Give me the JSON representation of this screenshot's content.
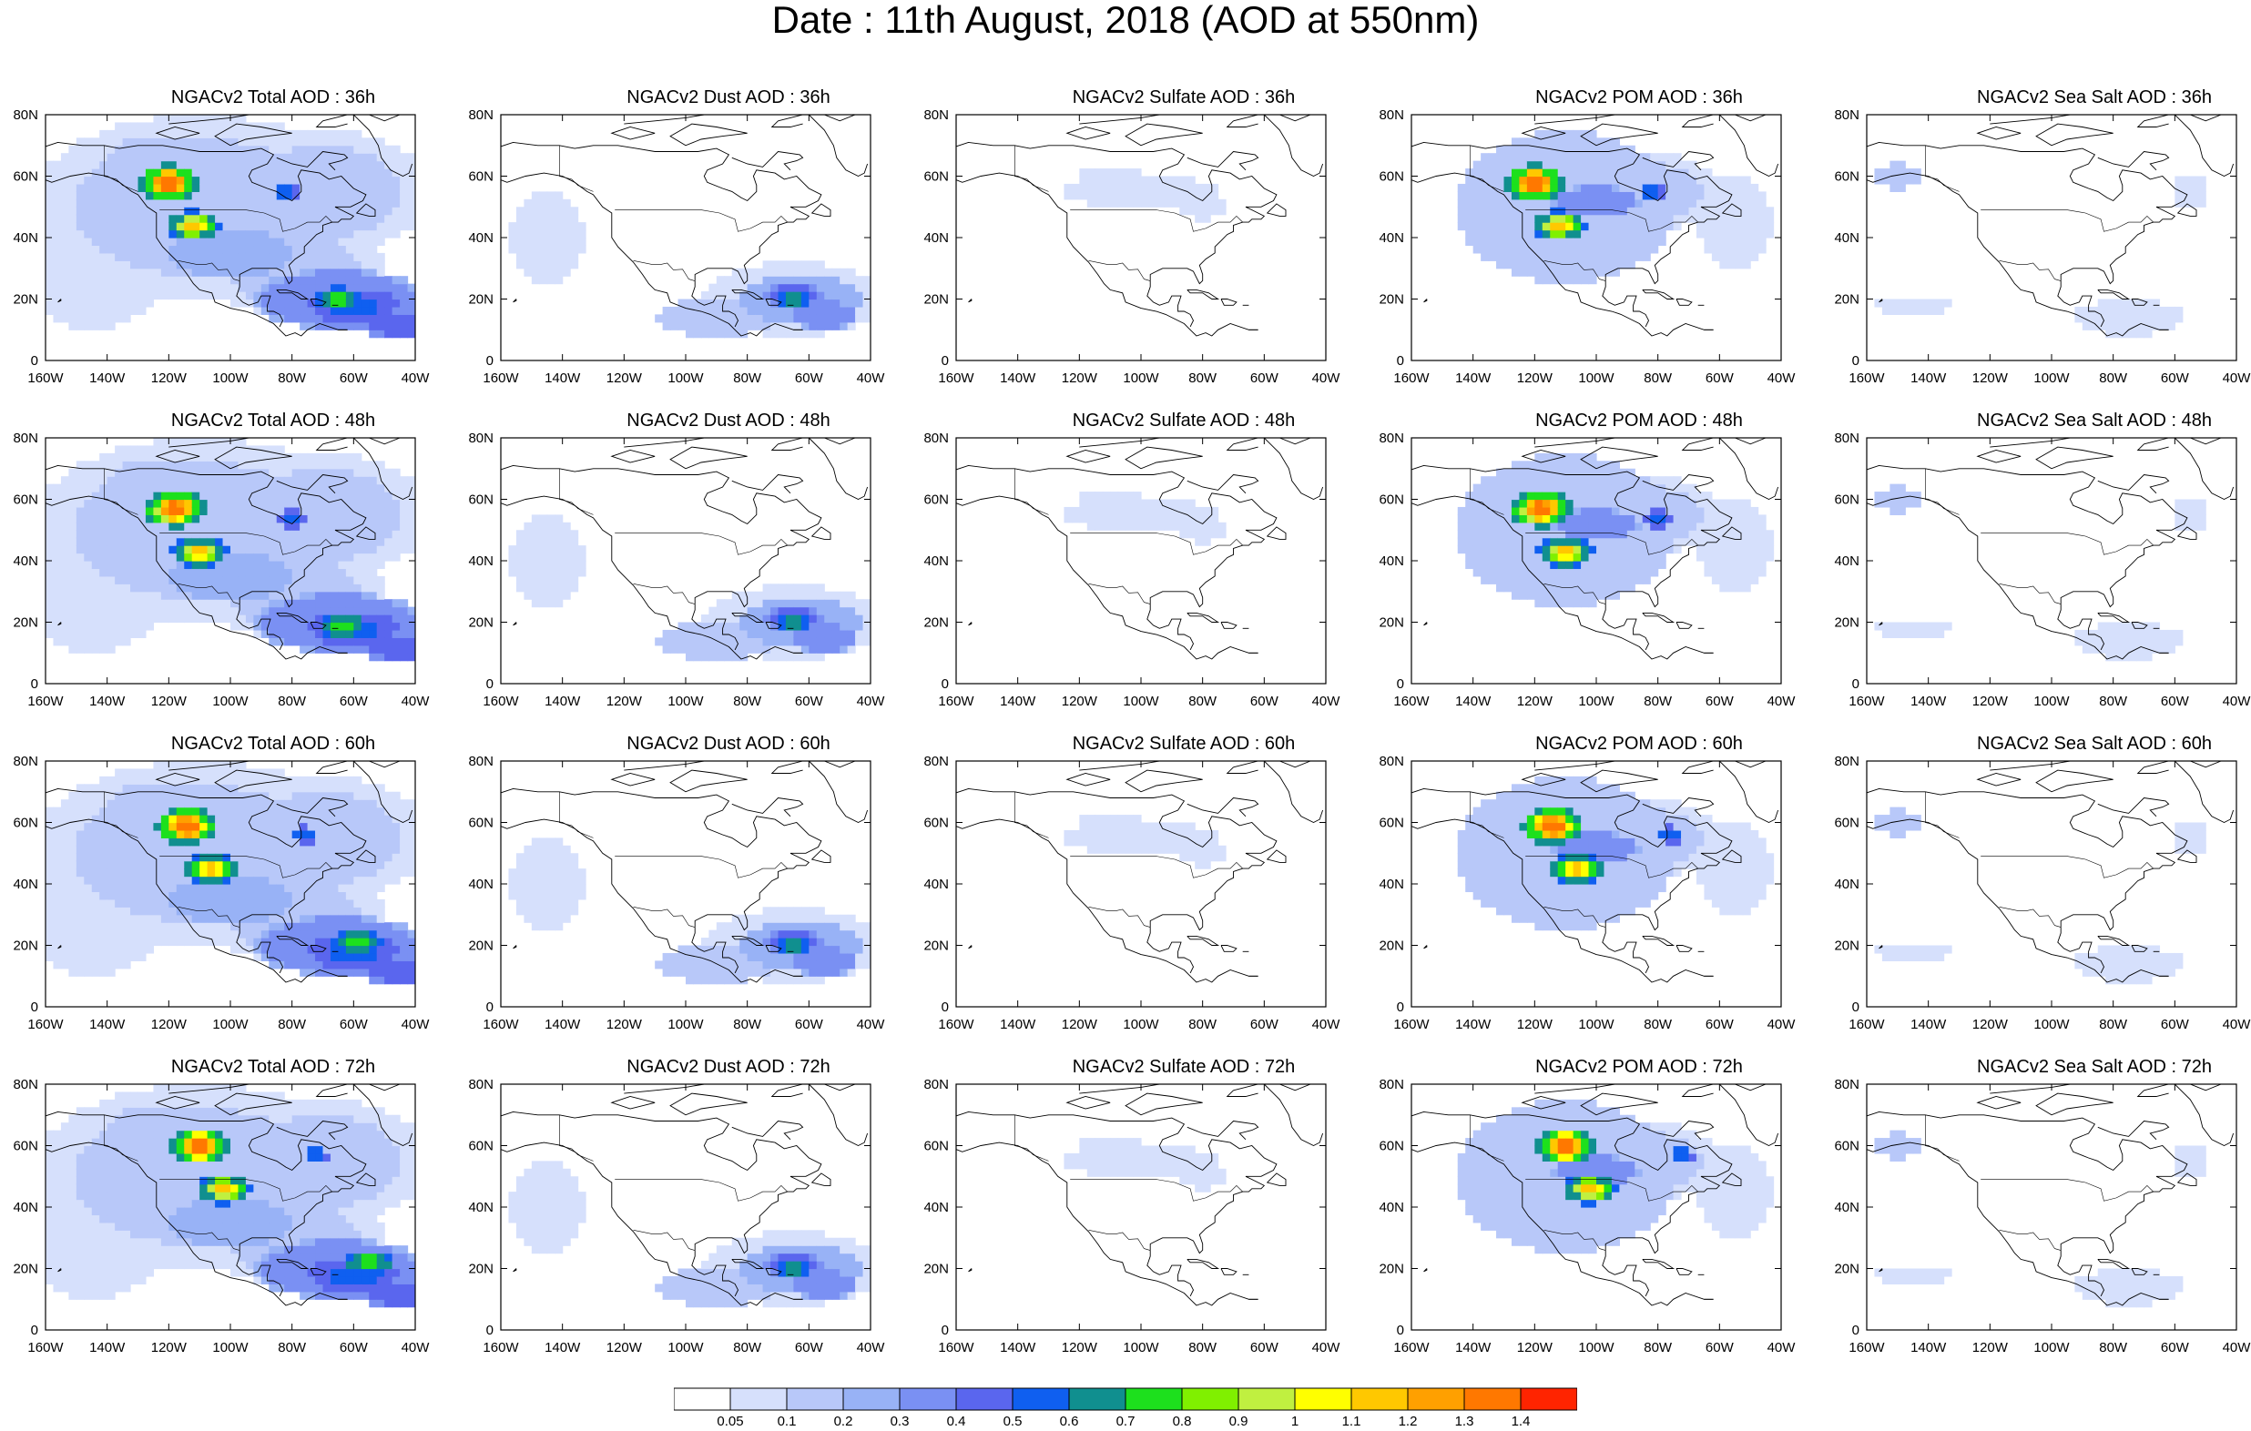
{
  "title": "Date : 11th August, 2018 (AOD at 550nm)",
  "lon_labels": [
    "160W",
    "140W",
    "120W",
    "100W",
    "80W",
    "60W",
    "40W"
  ],
  "lat_labels": [
    "0",
    "20N",
    "40N",
    "60N",
    "80N"
  ],
  "lon_range": [
    -160,
    -40
  ],
  "lat_range": [
    0,
    80
  ],
  "panels": [
    {
      "title": "NGACv2 Total AOD : 36h",
      "species": "total",
      "hour": 36
    },
    {
      "title": "NGACv2 Dust AOD : 36h",
      "species": "dust",
      "hour": 36
    },
    {
      "title": "NGACv2 Sulfate AOD : 36h",
      "species": "sulfate",
      "hour": 36
    },
    {
      "title": "NGACv2 POM AOD : 36h",
      "species": "pom",
      "hour": 36
    },
    {
      "title": "NGACv2 Sea Salt AOD : 36h",
      "species": "seasalt",
      "hour": 36
    },
    {
      "title": "NGACv2 Total AOD : 48h",
      "species": "total",
      "hour": 48
    },
    {
      "title": "NGACv2 Dust AOD : 48h",
      "species": "dust",
      "hour": 48
    },
    {
      "title": "NGACv2 Sulfate AOD : 48h",
      "species": "sulfate",
      "hour": 48
    },
    {
      "title": "NGACv2 POM AOD : 48h",
      "species": "pom",
      "hour": 48
    },
    {
      "title": "NGACv2 Sea Salt AOD : 48h",
      "species": "seasalt",
      "hour": 48
    },
    {
      "title": "NGACv2 Total AOD : 60h",
      "species": "total",
      "hour": 60
    },
    {
      "title": "NGACv2 Dust AOD : 60h",
      "species": "dust",
      "hour": 60
    },
    {
      "title": "NGACv2 Sulfate AOD : 60h",
      "species": "sulfate",
      "hour": 60
    },
    {
      "title": "NGACv2 POM AOD : 60h",
      "species": "pom",
      "hour": 60
    },
    {
      "title": "NGACv2 Sea Salt AOD : 60h",
      "species": "seasalt",
      "hour": 60
    },
    {
      "title": "NGACv2 Total AOD : 72h",
      "species": "total",
      "hour": 72
    },
    {
      "title": "NGACv2 Dust AOD : 72h",
      "species": "dust",
      "hour": 72
    },
    {
      "title": "NGACv2 Sulfate AOD : 72h",
      "species": "sulfate",
      "hour": 72
    },
    {
      "title": "NGACv2 POM AOD : 72h",
      "species": "pom",
      "hour": 72
    },
    {
      "title": "NGACv2 Sea Salt  AOD : 72h",
      "species": "seasalt",
      "hour": 72
    }
  ],
  "colorbar": {
    "labels": [
      "0.05",
      "0.1",
      "0.2",
      "0.3",
      "0.4",
      "0.5",
      "0.6",
      "0.7",
      "0.8",
      "0.9",
      "1",
      "1.1",
      "1.2",
      "1.3",
      "1.4"
    ],
    "colors": [
      "#ffffff",
      "#d6e0fc",
      "#b8c8f9",
      "#98b2f6",
      "#7a90f3",
      "#5a66ee",
      "#0f5ff0",
      "#108f8f",
      "#1de01d",
      "#80f000",
      "#c0f040",
      "#ffff00",
      "#ffc800",
      "#ffa000",
      "#ff7800",
      "#ff2400"
    ]
  },
  "chart_data": {
    "type": "heatmap",
    "title": "Date : 11th August, 2018 (AOD at 550nm)",
    "xlim": [
      -160,
      -40
    ],
    "ylim": [
      0,
      80
    ],
    "color_levels": [
      0.05,
      0.1,
      0.2,
      0.3,
      0.4,
      0.5,
      0.6,
      0.7,
      0.8,
      0.9,
      1,
      1.1,
      1.2,
      1.3,
      1.4
    ],
    "features": {
      "total": [
        {
          "lon": -120,
          "lat": 58,
          "aod": 1.4
        },
        {
          "lon": -112,
          "lat": 44,
          "aod": 1.2
        },
        {
          "lon": -65,
          "lat": 20,
          "aod": 0.75
        },
        {
          "lon": -140,
          "lat": 20,
          "aod": 0.2
        }
      ],
      "dust": [
        {
          "lon": -65,
          "lat": 20,
          "aod": 0.75
        },
        {
          "lon": -90,
          "lat": 15,
          "aod": 0.2
        }
      ],
      "sulfate": [
        {
          "lon": -100,
          "lat": 55,
          "aod": 0.1
        }
      ],
      "pom": [
        {
          "lon": -120,
          "lat": 58,
          "aod": 1.4
        },
        {
          "lon": -112,
          "lat": 44,
          "aod": 1.2
        }
      ],
      "seasalt": [
        {
          "lon": -150,
          "lat": 60,
          "aod": 0.2
        },
        {
          "lon": -75,
          "lat": 15,
          "aod": 0.1
        }
      ]
    }
  }
}
